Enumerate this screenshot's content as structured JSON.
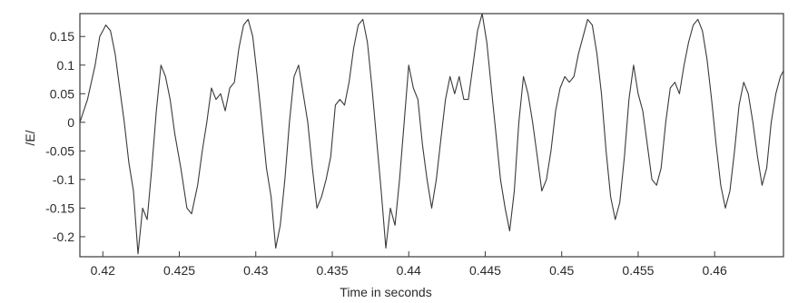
{
  "chart_data": {
    "type": "line",
    "title": "",
    "xlabel": "Time in seconds",
    "ylabel": "/E/",
    "xlim": [
      0.4185,
      0.4645
    ],
    "ylim": [
      -0.235,
      0.19
    ],
    "x_ticks": [
      0.42,
      0.425,
      0.43,
      0.435,
      0.44,
      0.445,
      0.45,
      0.455,
      0.46
    ],
    "x_tick_labels": [
      "0.42",
      "0.425",
      "0.43",
      "0.435",
      "0.44",
      "0.445",
      "0.45",
      "0.455",
      "0.46"
    ],
    "y_ticks": [
      0.15,
      0.1,
      0.05,
      0,
      -0.05,
      -0.1,
      -0.15,
      -0.2
    ],
    "y_tick_labels": [
      "0.15",
      "0.1",
      "0.05",
      "0",
      "-0.05",
      "-0.1",
      "-0.15",
      "-0.2"
    ],
    "grid": false,
    "line_color": "#3a3a3a",
    "series": [
      {
        "x": [
          0.4185,
          0.419,
          0.4195,
          0.4198,
          0.4202,
          0.4205,
          0.4208,
          0.4211,
          0.4214,
          0.4217,
          0.422,
          0.4223,
          0.4226,
          0.4229,
          0.4232,
          0.4235,
          0.4238,
          0.4241,
          0.4244,
          0.4247,
          0.4251,
          0.4255,
          0.4258,
          0.4262,
          0.4265,
          0.4268,
          0.4271,
          0.4274,
          0.4277,
          0.428,
          0.4283,
          0.4286,
          0.4289,
          0.4292,
          0.4295,
          0.4298,
          0.4301,
          0.4304,
          0.4307,
          0.431,
          0.4313,
          0.4316,
          0.4319,
          0.4322,
          0.4325,
          0.4328,
          0.4331,
          0.4334,
          0.4337,
          0.434,
          0.4343,
          0.4346,
          0.4349,
          0.4352,
          0.4355,
          0.4358,
          0.4361,
          0.4364,
          0.4367,
          0.437,
          0.4373,
          0.4376,
          0.4379,
          0.4382,
          0.4385,
          0.4388,
          0.4391,
          0.4394,
          0.4397,
          0.44,
          0.4403,
          0.4406,
          0.4409,
          0.4412,
          0.4415,
          0.4418,
          0.4421,
          0.4424,
          0.4427,
          0.443,
          0.4433,
          0.4436,
          0.4439,
          0.4442,
          0.4445,
          0.4448,
          0.4451,
          0.4454,
          0.4457,
          0.446,
          0.4463,
          0.4466,
          0.4469,
          0.4472,
          0.4475,
          0.4478,
          0.4481,
          0.4484,
          0.4487,
          0.449,
          0.4493,
          0.4496,
          0.4499,
          0.4502,
          0.4505,
          0.4508,
          0.4511,
          0.4514,
          0.4517,
          0.452,
          0.4523,
          0.4526,
          0.4529,
          0.4532,
          0.4535,
          0.4538,
          0.4541,
          0.4544,
          0.4547,
          0.455,
          0.4553,
          0.4556,
          0.4559,
          0.4562,
          0.4565,
          0.4568,
          0.4571,
          0.4574,
          0.4577,
          0.458,
          0.4583,
          0.4586,
          0.4589,
          0.4592,
          0.4595,
          0.4598,
          0.4601,
          0.4604,
          0.4607,
          0.461,
          0.4613,
          0.4616,
          0.4619,
          0.4622,
          0.4625,
          0.4628,
          0.4631,
          0.4634,
          0.4637,
          0.464,
          0.4643,
          0.4645
        ],
        "y": [
          0.0,
          0.04,
          0.1,
          0.15,
          0.17,
          0.16,
          0.12,
          0.06,
          0.0,
          -0.07,
          -0.12,
          -0.23,
          -0.15,
          -0.17,
          -0.08,
          0.02,
          0.1,
          0.08,
          0.04,
          -0.02,
          -0.08,
          -0.15,
          -0.16,
          -0.11,
          -0.05,
          0.0,
          0.06,
          0.04,
          0.05,
          0.02,
          0.06,
          0.07,
          0.13,
          0.17,
          0.18,
          0.15,
          0.08,
          0.0,
          -0.08,
          -0.13,
          -0.22,
          -0.18,
          -0.1,
          0.0,
          0.08,
          0.1,
          0.05,
          0.0,
          -0.08,
          -0.15,
          -0.13,
          -0.1,
          -0.06,
          0.03,
          0.04,
          0.03,
          0.07,
          0.13,
          0.17,
          0.18,
          0.14,
          0.06,
          -0.03,
          -0.12,
          -0.22,
          -0.15,
          -0.18,
          -0.1,
          0.0,
          0.1,
          0.06,
          0.04,
          -0.04,
          -0.1,
          -0.15,
          -0.1,
          -0.03,
          0.04,
          0.08,
          0.05,
          0.08,
          0.04,
          0.04,
          0.1,
          0.16,
          0.19,
          0.14,
          0.06,
          -0.02,
          -0.1,
          -0.15,
          -0.19,
          -0.12,
          0.0,
          0.08,
          0.05,
          0.0,
          -0.06,
          -0.12,
          -0.1,
          -0.05,
          0.02,
          0.06,
          0.08,
          0.07,
          0.08,
          0.12,
          0.15,
          0.18,
          0.17,
          0.12,
          0.05,
          -0.05,
          -0.13,
          -0.17,
          -0.14,
          -0.06,
          0.04,
          0.1,
          0.05,
          0.02,
          -0.04,
          -0.1,
          -0.11,
          -0.08,
          0.0,
          0.06,
          0.07,
          0.05,
          0.1,
          0.14,
          0.17,
          0.18,
          0.16,
          0.11,
          0.04,
          -0.04,
          -0.11,
          -0.15,
          -0.12,
          -0.05,
          0.03,
          0.07,
          0.05,
          0.0,
          -0.06,
          -0.11,
          -0.08,
          0.0,
          0.05,
          0.08,
          0.09
        ]
      }
    ]
  }
}
